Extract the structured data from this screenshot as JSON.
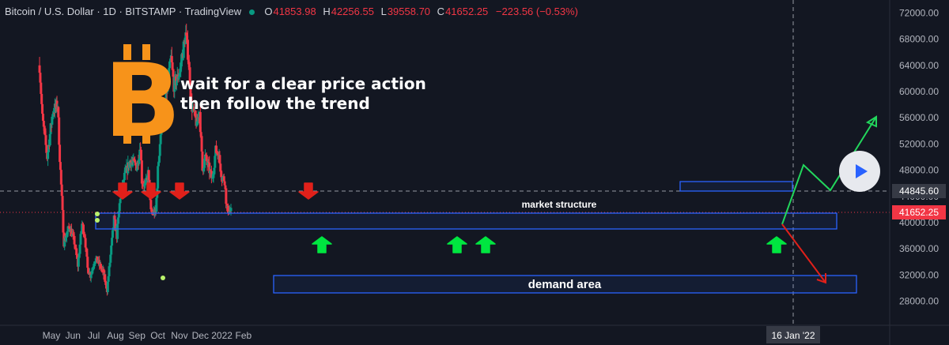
{
  "header": {
    "title": "Bitcoin / U.S. Dollar · 1D · BITSTAMP · TradingView",
    "open_label": "O",
    "open": "41853.98",
    "high_label": "H",
    "high": "42256.55",
    "low_label": "L",
    "low": "39558.70",
    "close_label": "C",
    "close": "41652.25",
    "change": "−223.56 (−0.53%)"
  },
  "annotation": {
    "line1": "wait for a clear price action",
    "line2": "then follow the trend"
  },
  "labels": {
    "market_structure": "market structure",
    "demand_area": "demand area"
  },
  "colors": {
    "background": "#131722",
    "up": "#089981",
    "down": "#f23645",
    "bitcoin_logo": "#f7931a",
    "zone_border": "#2962ff",
    "arrow_green": "#00e640",
    "arrow_red": "#e0201a"
  },
  "chart_data": {
    "type": "candlestick",
    "title": "Bitcoin / U.S. Dollar · 1D · BITSTAMP · TradingView",
    "xlabel": "",
    "ylabel": "",
    "y_ticks": [
      28000,
      32000,
      36000,
      40000,
      44000,
      48000,
      52000,
      56000,
      60000,
      64000,
      68000,
      72000
    ],
    "y_tick_labels": [
      "28000.00",
      "32000.00",
      "36000.00",
      "40000.00",
      "44000.00",
      "48000.00",
      "52000.00",
      "56000.00",
      "60000.00",
      "64000.00",
      "68000.00",
      "72000.00"
    ],
    "x_tick_labels": [
      "May",
      "Jun",
      "Jul",
      "Aug",
      "Sep",
      "Oct",
      "Nov",
      "Dec",
      "2022",
      "Feb"
    ],
    "ylim": [
      25500,
      74500
    ],
    "grid": false,
    "price_marker": {
      "value": 41652.25,
      "label": "41652.25"
    },
    "crosshair": {
      "value": 44845.6,
      "label": "44845.60",
      "date_label": "16 Jan '22"
    },
    "price_path": [
      [
        "2021-04-14",
        64000
      ],
      [
        "2021-04-18",
        56000
      ],
      [
        "2021-04-25",
        50000
      ],
      [
        "2021-05-03",
        57000
      ],
      [
        "2021-05-10",
        58000
      ],
      [
        "2021-05-13",
        50000
      ],
      [
        "2021-05-19",
        37000
      ],
      [
        "2021-05-24",
        38500
      ],
      [
        "2021-05-27",
        39500
      ],
      [
        "2021-06-03",
        37000
      ],
      [
        "2021-06-08",
        33500
      ],
      [
        "2021-06-14",
        39800
      ],
      [
        "2021-06-18",
        38000
      ],
      [
        "2021-06-22",
        33000
      ],
      [
        "2021-06-26",
        32000
      ],
      [
        "2021-07-03",
        34500
      ],
      [
        "2021-07-07",
        34000
      ],
      [
        "2021-07-14",
        32500
      ],
      [
        "2021-07-20",
        29800
      ],
      [
        "2021-07-25",
        35000
      ],
      [
        "2021-07-30",
        40500
      ],
      [
        "2021-08-03",
        38000
      ],
      [
        "2021-08-08",
        44000
      ],
      [
        "2021-08-14",
        47000
      ],
      [
        "2021-08-22",
        49500
      ],
      [
        "2021-09-01",
        48500
      ],
      [
        "2021-09-06",
        52000
      ],
      [
        "2021-09-08",
        46500
      ],
      [
        "2021-09-13",
        45500
      ],
      [
        "2021-09-17",
        47500
      ],
      [
        "2021-09-21",
        41500
      ],
      [
        "2021-09-28",
        41500
      ],
      [
        "2021-10-01",
        48000
      ],
      [
        "2021-10-06",
        55000
      ],
      [
        "2021-10-10",
        56000
      ],
      [
        "2021-10-15",
        61500
      ],
      [
        "2021-10-20",
        65000
      ],
      [
        "2021-10-24",
        61000
      ],
      [
        "2021-10-29",
        62000
      ],
      [
        "2021-11-02",
        63500
      ],
      [
        "2021-11-08",
        67500
      ],
      [
        "2021-11-10",
        68700
      ],
      [
        "2021-11-14",
        65000
      ],
      [
        "2021-11-18",
        58000
      ],
      [
        "2021-11-22",
        56500
      ],
      [
        "2021-11-26",
        55000
      ],
      [
        "2021-11-30",
        57000
      ],
      [
        "2021-12-04",
        48000
      ],
      [
        "2021-12-08",
        50000
      ],
      [
        "2021-12-14",
        48000
      ],
      [
        "2021-12-18",
        46500
      ],
      [
        "2021-12-23",
        51000
      ],
      [
        "2021-12-27",
        50500
      ],
      [
        "2022-01-01",
        47000
      ],
      [
        "2022-01-05",
        46500
      ],
      [
        "2022-01-08",
        42000
      ],
      [
        "2022-01-14",
        41652.25
      ]
    ]
  }
}
